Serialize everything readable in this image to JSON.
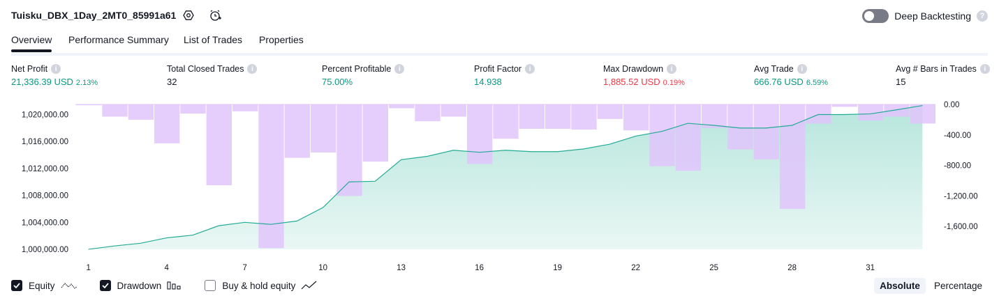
{
  "header": {
    "strategy_name": "Tuisku_DBX_1Day_2MT0_85991a61",
    "settings_icon": "gear-icon",
    "alert_icon": "alarm-clock-plus-icon",
    "deep_backtesting_label": "Deep Backtesting",
    "deep_backtesting_enabled": false,
    "help_icon": "question-icon"
  },
  "tabs": [
    {
      "label": "Overview",
      "active": true
    },
    {
      "label": "Performance Summary",
      "active": false
    },
    {
      "label": "List of Trades",
      "active": false
    },
    {
      "label": "Properties",
      "active": false
    }
  ],
  "metrics": [
    {
      "label": "Net Profit",
      "value": "21,336.39 USD",
      "pct": "2.13%",
      "color": "#089981"
    },
    {
      "label": "Total Closed Trades",
      "value": "32",
      "pct": "",
      "color": "#131722"
    },
    {
      "label": "Percent Profitable",
      "value": "75.00%",
      "pct": "",
      "color": "#089981"
    },
    {
      "label": "Profit Factor",
      "value": "14.938",
      "pct": "",
      "color": "#089981"
    },
    {
      "label": "Max Drawdown",
      "value": "1,885.52 USD",
      "pct": "0.19%",
      "color": "#f23645"
    },
    {
      "label": "Avg Trade",
      "value": "666.76 USD",
      "pct": "6.59%",
      "color": "#089981"
    },
    {
      "label": "Avg # Bars in Trades",
      "value": "15",
      "pct": "",
      "color": "#131722"
    }
  ],
  "legend": {
    "equity_label": "Equity",
    "equity_checked": true,
    "drawdown_label": "Drawdown",
    "drawdown_checked": true,
    "buyhold_label": "Buy & hold equity",
    "buyhold_checked": false
  },
  "modes": {
    "absolute_label": "Absolute",
    "percentage_label": "Percentage",
    "active": "absolute"
  },
  "colors": {
    "equity_line": "#22ab94",
    "equity_fill": "#d4f0ea",
    "drawdown_bar": "#e1c4fc",
    "drawdown_overlap": "#b3b8e8"
  },
  "chart_data": {
    "type": "line",
    "x": [
      1,
      2,
      3,
      4,
      5,
      6,
      7,
      8,
      9,
      10,
      11,
      12,
      13,
      14,
      15,
      16,
      17,
      18,
      19,
      20,
      21,
      22,
      23,
      24,
      25,
      26,
      27,
      28,
      29,
      30,
      31,
      32,
      33
    ],
    "x_tick_labels": [
      "1",
      "4",
      "7",
      "10",
      "13",
      "16",
      "19",
      "22",
      "25",
      "28",
      "31"
    ],
    "equity_ylim": [
      1000000,
      1021500
    ],
    "equity_ticks": [
      "1,000,000.00",
      "1,004,000.00",
      "1,008,000.00",
      "1,012,000.00",
      "1,016,000.00",
      "1,020,000.00"
    ],
    "drawdown_ylim": [
      -1900,
      0
    ],
    "drawdown_ticks": [
      "0.00",
      "-400.00",
      "-800.00",
      "-1,200.00",
      "-1,600.00"
    ],
    "series": [
      {
        "name": "Equity",
        "values": [
          1000000,
          1000500,
          1000900,
          1001700,
          1002100,
          1003500,
          1004000,
          1003700,
          1004200,
          1006200,
          1010000,
          1010100,
          1013300,
          1013800,
          1014700,
          1014400,
          1014700,
          1014500,
          1014500,
          1014900,
          1015600,
          1016800,
          1017500,
          1018700,
          1018400,
          1018000,
          1018000,
          1018400,
          1020000,
          1020000,
          1020100,
          1020700,
          1021336
        ]
      },
      {
        "name": "Drawdown",
        "values": [
          -10,
          -160,
          -200,
          -510,
          -120,
          -1060,
          -90,
          -1885,
          -700,
          -630,
          -1200,
          -750,
          -50,
          -220,
          -160,
          -780,
          -450,
          -320,
          -320,
          -330,
          -190,
          -340,
          -810,
          -870,
          -310,
          -590,
          -720,
          -1370,
          -250,
          -30,
          -210,
          -160,
          -250
        ]
      }
    ],
    "grid": false,
    "legend": "bottom-left"
  }
}
